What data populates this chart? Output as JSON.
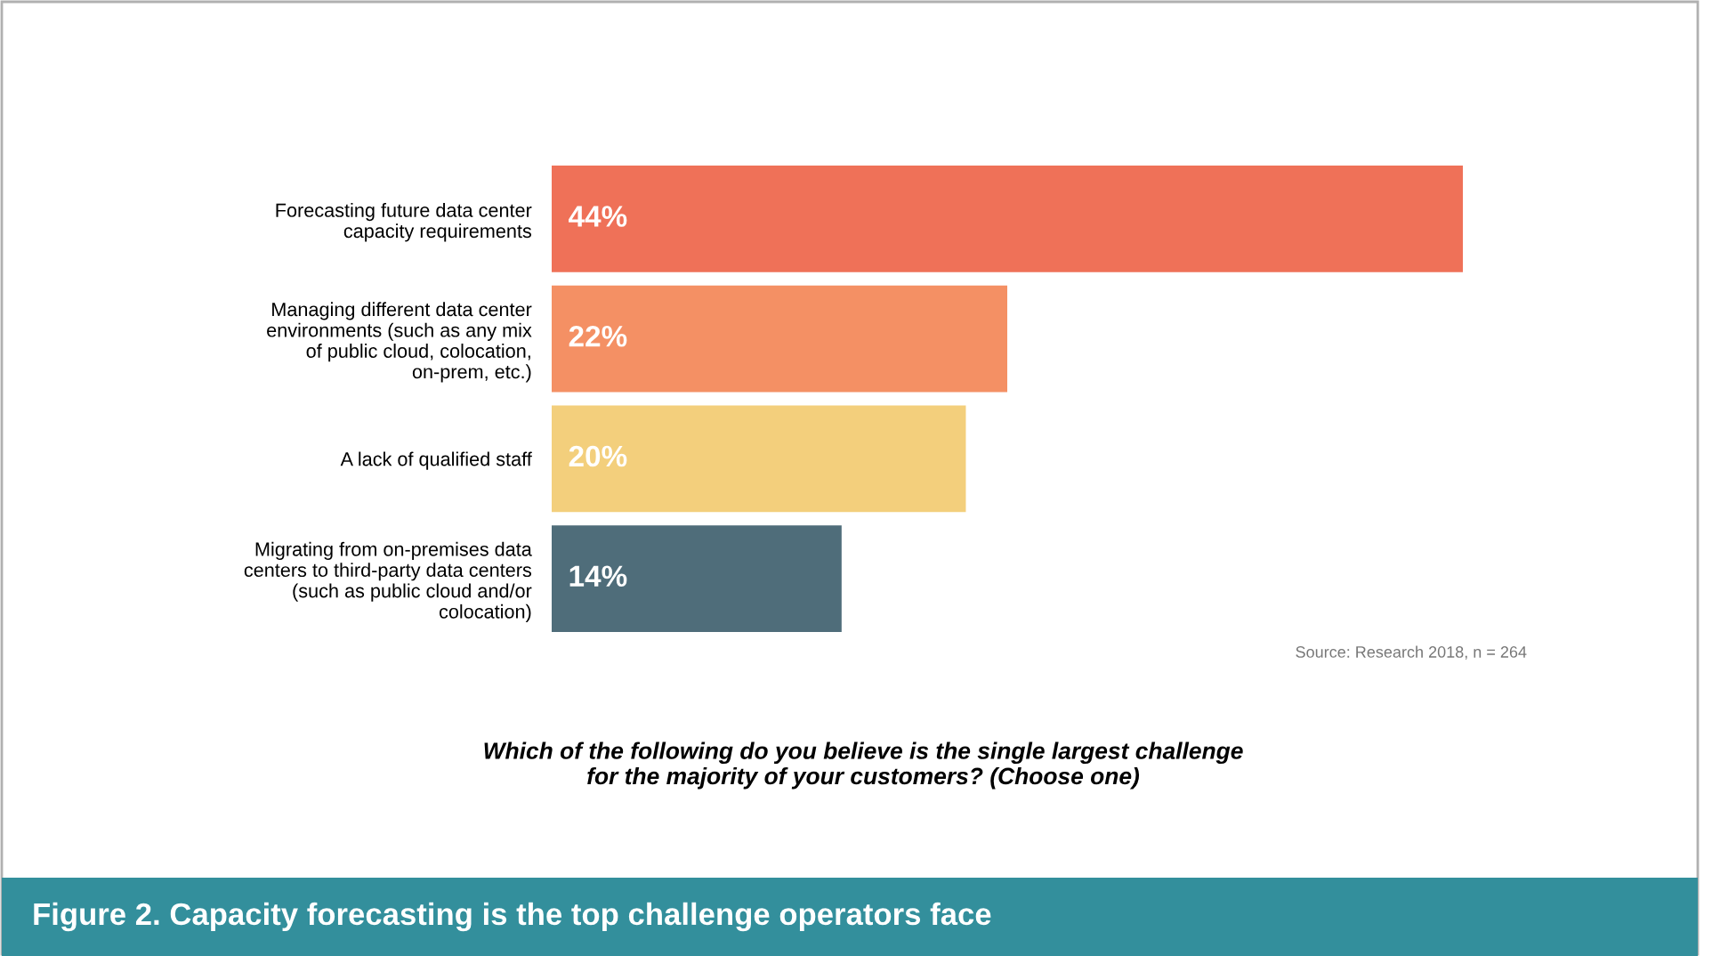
{
  "chart_data": {
    "type": "bar",
    "orientation": "horizontal",
    "title": "Figure 2. Capacity forecasting is the top challenge operators face",
    "categories": [
      "Forecasting future data center\ncapacity requirements",
      "Managing different data center\nenvironments (such as any mix\nof public cloud, colocation,\non-prem, etc.)",
      "A lack of qualified staff",
      "Migrating from on-premises data\ncenters to third-party data centers\n(such as public cloud and/or\ncolocation)"
    ],
    "values": [
      44,
      22,
      20,
      14
    ],
    "colors": [
      "#ef7158",
      "#f49064",
      "#f3cf7c",
      "#4f6d7a"
    ],
    "value_labels": [
      "44%",
      "22%",
      "20%",
      "14%"
    ],
    "annotations": [
      "Source: Research 2018, n = 264",
      "Which of the following do you believe is the single largest challenge\nfor the majority of your customers? (Choose one)"
    ],
    "grid": false,
    "legend": false
  }
}
